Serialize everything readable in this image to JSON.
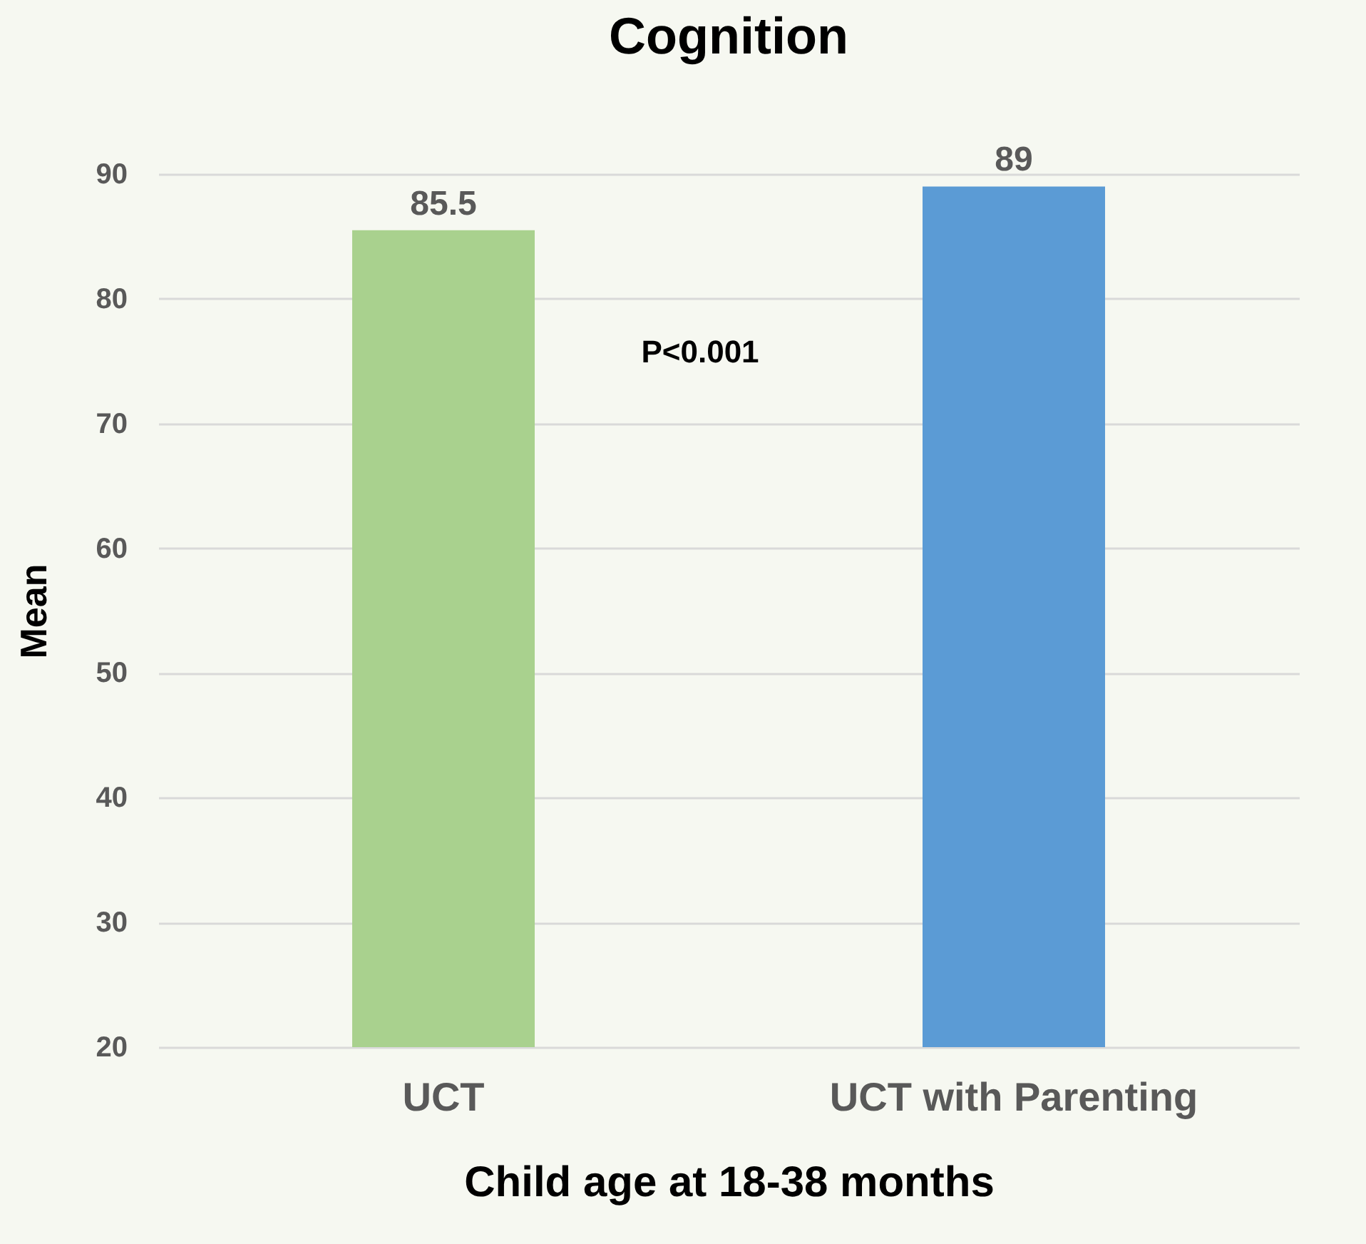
{
  "chart_data": {
    "type": "bar",
    "title": "Cognition",
    "xlabel": "Child age at 18-38 months",
    "ylabel": "Mean",
    "categories": [
      "UCT",
      "UCT with Parenting"
    ],
    "values": [
      85.5,
      89
    ],
    "colors": [
      "#a9d18e",
      "#5b9bd5"
    ],
    "ylim": [
      20,
      90
    ],
    "yticks": [
      20,
      30,
      40,
      50,
      60,
      70,
      80,
      90
    ],
    "grid": "y",
    "data_labels": true,
    "legend": false,
    "annotations": [
      "P<0.001"
    ]
  }
}
